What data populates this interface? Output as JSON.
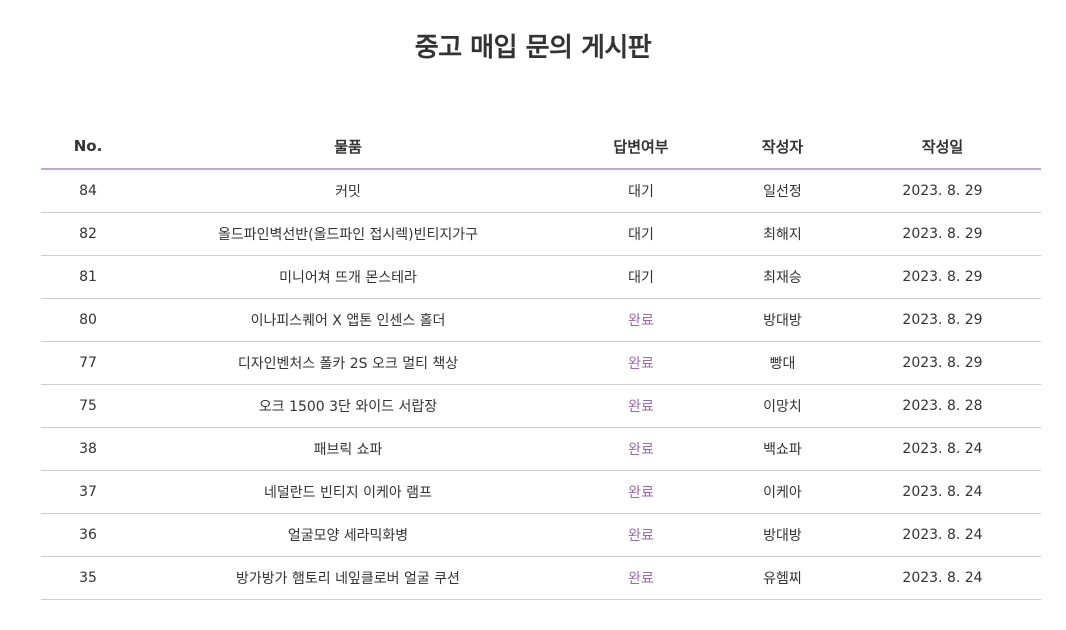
{
  "page": {
    "title": "중고 매입 문의 게시판"
  },
  "colors": {
    "header_border": "#c6a6cf",
    "status_done": "#9b6aad",
    "row_border": "#cccccc",
    "text": "#333333"
  },
  "table": {
    "headers": {
      "no": "No.",
      "item": "물품",
      "status": "답변여부",
      "author": "작성자",
      "date": "작성일"
    },
    "rows": [
      {
        "no": "84",
        "item": "커밋",
        "status": "대기",
        "author": "일선정",
        "date": "2023. 8. 29"
      },
      {
        "no": "82",
        "item": "올드파인벽선반(올드파인 접시렉)빈티지가구",
        "status": "대기",
        "author": "최해지",
        "date": "2023. 8. 29"
      },
      {
        "no": "81",
        "item": "미니어쳐 뜨개 몬스테라",
        "status": "대기",
        "author": "최재승",
        "date": "2023. 8. 29"
      },
      {
        "no": "80",
        "item": "이나피스퀘어 X 앱톤 인센스 홀더",
        "status": "완료",
        "author": "방대방",
        "date": "2023. 8. 29"
      },
      {
        "no": "77",
        "item": "디자인벤처스 폴카 2S 오크 멀티 책상",
        "status": "완료",
        "author": "빵대",
        "date": "2023. 8. 29"
      },
      {
        "no": "75",
        "item": "오크 1500 3단 와이드 서랍장",
        "status": "완료",
        "author": "이망치",
        "date": "2023. 8. 28"
      },
      {
        "no": "38",
        "item": "패브릭 쇼파",
        "status": "완료",
        "author": "백쇼파",
        "date": "2023. 8. 24"
      },
      {
        "no": "37",
        "item": "네덜란드 빈티지 이케아 램프",
        "status": "완료",
        "author": "이케아",
        "date": "2023. 8. 24"
      },
      {
        "no": "36",
        "item": "얼굴모양 세라믹화병",
        "status": "완료",
        "author": "방대방",
        "date": "2023. 8. 24"
      },
      {
        "no": "35",
        "item": "방가방가 햄토리 네잎클로버 얼굴 쿠션",
        "status": "완료",
        "author": "유헴찌",
        "date": "2023. 8. 24"
      }
    ]
  }
}
